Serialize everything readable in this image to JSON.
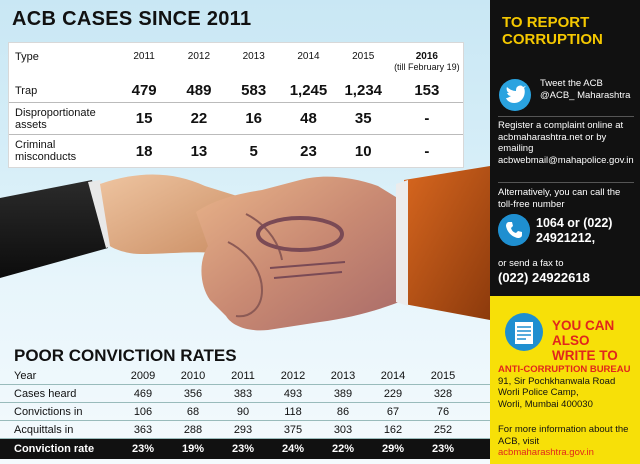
{
  "acb": {
    "title": "ACB CASES SINCE 2011",
    "header": {
      "type": "Type",
      "years": [
        "2011",
        "2012",
        "2013",
        "2014",
        "2015"
      ],
      "y2016": "2016",
      "y2016_note": "(till February 19)"
    },
    "rows": [
      {
        "label": "Trap",
        "values": [
          "479",
          "489",
          "583",
          "1,245",
          "1,234"
        ],
        "v2016": "153"
      },
      {
        "label": "Disproportionate assets",
        "values": [
          "15",
          "22",
          "16",
          "48",
          "35"
        ],
        "v2016": "-"
      },
      {
        "label": "Criminal misconducts",
        "values": [
          "18",
          "13",
          "5",
          "23",
          "10"
        ],
        "v2016": "-"
      }
    ]
  },
  "conviction": {
    "title": "POOR CONVICTION RATES",
    "header": {
      "label": "Year",
      "years": [
        "2009",
        "2010",
        "2011",
        "2012",
        "2013",
        "2014",
        "2015"
      ]
    },
    "rows": [
      {
        "label": "Cases heard",
        "values": [
          "469",
          "356",
          "383",
          "493",
          "389",
          "229",
          "328"
        ]
      },
      {
        "label": "Convictions in",
        "values": [
          "106",
          "68",
          "90",
          "118",
          "86",
          "67",
          "76"
        ]
      },
      {
        "label": "Acquittals in",
        "values": [
          "363",
          "288",
          "293",
          "375",
          "303",
          "162",
          "252"
        ]
      },
      {
        "label": "Conviction rate",
        "values": [
          "23%",
          "19%",
          "23%",
          "24%",
          "22%",
          "29%",
          "23%"
        ]
      }
    ]
  },
  "report": {
    "title_line1": "TO REPORT",
    "title_line2": "CORRUPTION",
    "tweet": "Tweet the ACB @ACB_ Maharashtra",
    "register": "Register a complaint online at acbmaharashtra.net or by emailing acbwebmail@mahapolice.gov.in",
    "alternatively": "Alternatively, you can call the toll-free number",
    "phone_line1": "1064 or (022)",
    "phone_line2": "24921212,",
    "fax_label": "or send a fax to",
    "fax": "(022) 24922618",
    "write_line1": "YOU CAN",
    "write_line2": "ALSO",
    "write_line3": "WRITE TO",
    "bureau_name": "ANTI-CORRUPTION BUREAU",
    "address_line1": "91, Sir Pochkhanwala Road",
    "address_line2": "Worli Police Camp,",
    "address_line3": "Worli, Mumbai 400030",
    "more_info": "For more information about the ACB, visit",
    "url": "acbmaharashtra.gov.in"
  },
  "colors": {
    "accent_yellow": "#f7e008",
    "accent_red": "#e1261c",
    "panel_black": "#111111",
    "twitter_blue": "#1f8fd0"
  },
  "icons": [
    "twitter-bird-icon",
    "phone-icon",
    "mail-icon"
  ]
}
